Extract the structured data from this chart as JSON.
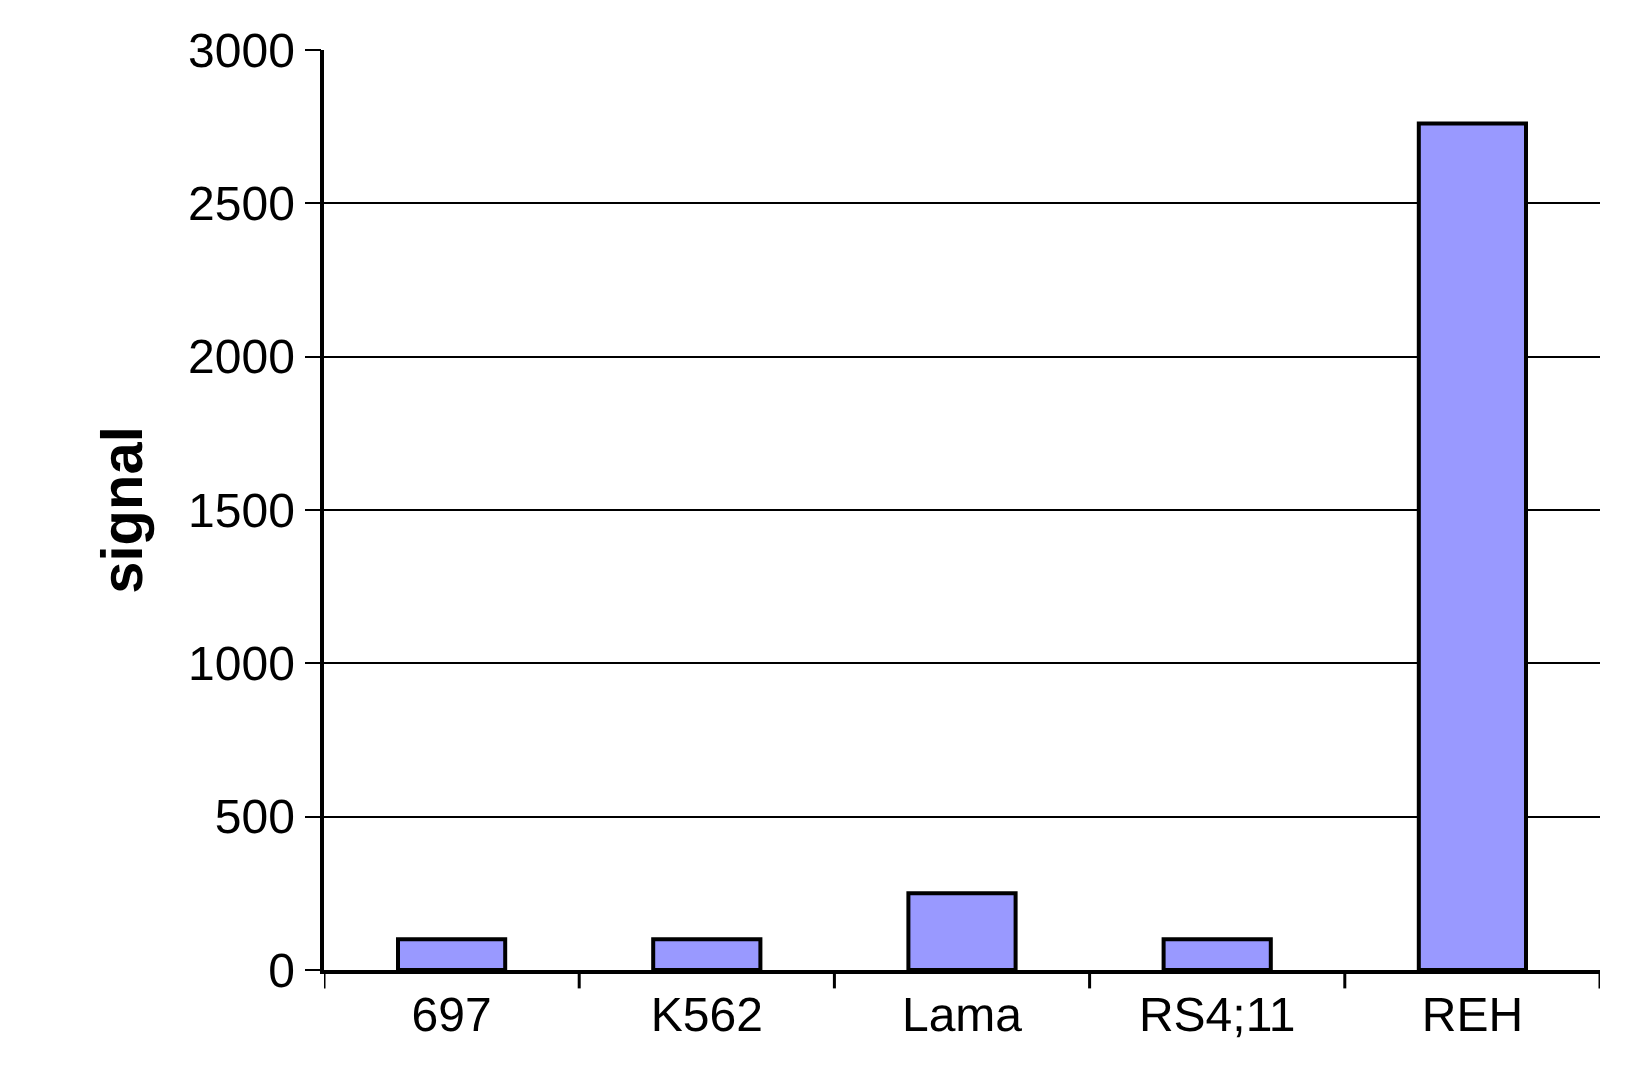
{
  "chart_data": {
    "type": "bar",
    "ylabel": "signal",
    "categories": [
      "697",
      "K562",
      "Lama",
      "RS4;11",
      "REH"
    ],
    "values": [
      100,
      100,
      250,
      100,
      2760
    ],
    "color": "#9999ff",
    "ylim": [
      0,
      3000
    ],
    "yticks": [
      0,
      500,
      1000,
      1500,
      2000,
      2500,
      3000
    ],
    "grid": "y",
    "legend": false
  }
}
